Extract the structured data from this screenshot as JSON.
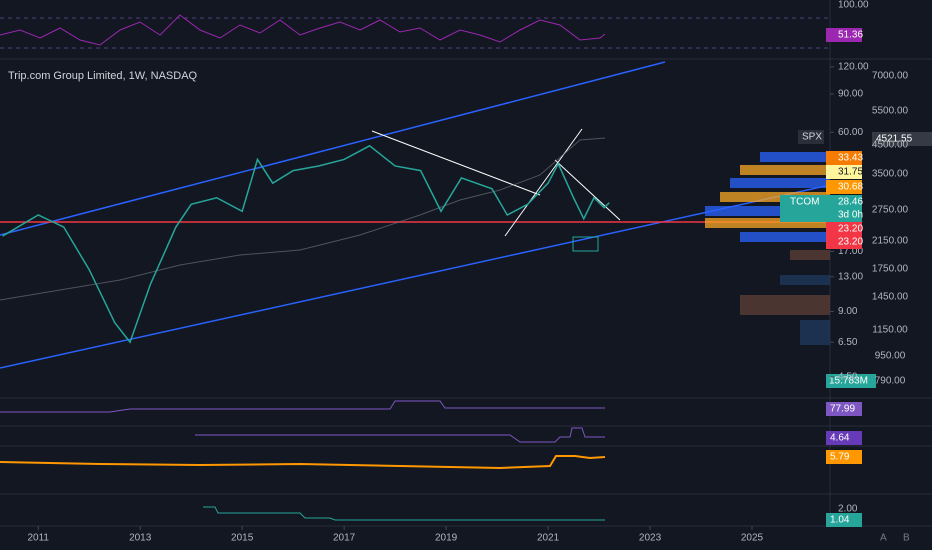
{
  "header": {
    "title": "Trip.com Group Limited, 1W, NASDAQ"
  },
  "rsi": {
    "axis": "100.00",
    "value": "51.36"
  },
  "spx": {
    "symbol": "SPX",
    "last": "4521.55",
    "axis": [
      "7000.00",
      "5500.00",
      "4500.00",
      "3500.00",
      "2750.00",
      "2150.00",
      "1750.00",
      "1450.00",
      "1150.00",
      "950.00",
      "790.00"
    ]
  },
  "badges": [
    {
      "label": "33.43",
      "color": "#f57c00"
    },
    {
      "label": "31.75",
      "color": "#fff59d"
    },
    {
      "label": "30.68",
      "color": "#ff9800"
    },
    {
      "label": "23.20",
      "color": "#f23645"
    },
    {
      "label": "23.20",
      "color": "#f23645"
    }
  ],
  "tcom": {
    "symbol": "TCOM",
    "last": "28.46",
    "countdown": "3d 0h"
  },
  "volume": "15.783M",
  "indicators": [
    {
      "label": "77.99",
      "color": "#7e57c2"
    },
    {
      "label": "4.64",
      "color": "#673ab7"
    },
    {
      "label": "5.79",
      "color": "#ff9800"
    },
    {
      "label": "1.04",
      "color": "#26a69a"
    }
  ],
  "lower_axis": "2.00",
  "scale_buttons": [
    "A",
    "B"
  ],
  "chart_data": {
    "type": "line",
    "log_scale": true,
    "x": [
      2010.3,
      2011.0,
      2011.5,
      2012.0,
      2012.5,
      2012.8,
      2013.2,
      2013.7,
      2014.0,
      2014.5,
      2015.0,
      2015.3,
      2015.6,
      2016.0,
      2016.5,
      2017.0,
      2017.5,
      2018.0,
      2018.5,
      2018.9,
      2019.3,
      2019.9,
      2020.2,
      2020.6,
      2021.0,
      2021.2,
      2021.5,
      2021.7,
      2021.9,
      2022.1,
      2022.2
    ],
    "series": [
      {
        "color": "#26a69a",
        "values": [
          20,
          25,
          22,
          14,
          8,
          6.5,
          12,
          22,
          28,
          30,
          26,
          45,
          35,
          40,
          42,
          45,
          52,
          42,
          40,
          26,
          37,
          33,
          25,
          28,
          35,
          43,
          30,
          24,
          30,
          27,
          28.46
        ]
      }
    ],
    "xlim": [
      2010.25,
      2026.53
    ],
    "xticks": [
      2011,
      2013,
      2015,
      2017,
      2019,
      2021,
      2023,
      2025
    ],
    "ylim": [
      3.6,
      129
    ],
    "yticks": [
      {
        "value": 120,
        "label": "120.00"
      },
      {
        "value": 90,
        "label": "90.00"
      },
      {
        "value": 60,
        "label": "60.00"
      },
      {
        "value": 17,
        "label": "17.00"
      },
      {
        "value": 13,
        "label": "13.00"
      },
      {
        "value": 9,
        "label": "9.00"
      },
      {
        "value": 6.5,
        "label": "6.50"
      },
      {
        "value": 4.5,
        "label": "4.50"
      }
    ]
  }
}
